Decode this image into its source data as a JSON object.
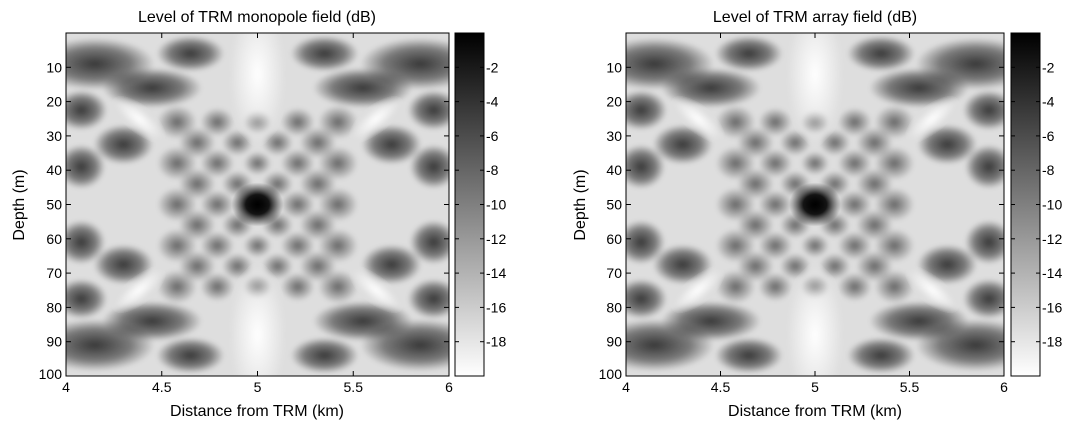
{
  "chart_data": [
    {
      "type": "heatmap",
      "title": "Level of TRM monopole field (dB)",
      "xlabel": "Distance from TRM (km)",
      "ylabel": "Depth (m)",
      "xlim": [
        4,
        6
      ],
      "ylim": [
        0,
        100
      ],
      "y_reversed": true,
      "x_ticks": [
        4,
        4.5,
        5,
        5.5,
        6
      ],
      "x_tick_labels": [
        "4",
        "4.5",
        "5",
        "5.5",
        "6"
      ],
      "y_ticks": [
        10,
        20,
        30,
        40,
        50,
        60,
        70,
        80,
        90,
        100
      ],
      "y_tick_labels": [
        "10",
        "20",
        "30",
        "40",
        "50",
        "60",
        "70",
        "80",
        "90",
        "100"
      ],
      "colormap": "gray, black = high level, white = low level",
      "colorbar": {
        "range": [
          -20,
          0
        ],
        "ticks": [
          -2,
          -4,
          -6,
          -8,
          -10,
          -12,
          -14,
          -16,
          -18
        ],
        "tick_labels": [
          "-2",
          "-4",
          "-6",
          "-8",
          "-10",
          "-12",
          "-14",
          "-16",
          "-18"
        ]
      },
      "focal_point": {
        "x": 5,
        "y": 50,
        "value": 0
      },
      "grid": false
    },
    {
      "type": "heatmap",
      "title": "Level of TRM array field (dB)",
      "xlabel": "Distance from TRM (km)",
      "ylabel": "Depth (m)",
      "xlim": [
        4,
        6
      ],
      "ylim": [
        0,
        100
      ],
      "y_reversed": true,
      "x_ticks": [
        4,
        4.5,
        5,
        5.5,
        6
      ],
      "x_tick_labels": [
        "4",
        "4.5",
        "5",
        "5.5",
        "6"
      ],
      "y_ticks": [
        10,
        20,
        30,
        40,
        50,
        60,
        70,
        80,
        90,
        100
      ],
      "y_tick_labels": [
        "10",
        "20",
        "30",
        "40",
        "50",
        "60",
        "70",
        "80",
        "90",
        "100"
      ],
      "colormap": "gray, black = high level, white = low level",
      "colorbar": {
        "range": [
          -20,
          0
        ],
        "ticks": [
          -2,
          -4,
          -6,
          -8,
          -10,
          -12,
          -14,
          -16,
          -18
        ],
        "tick_labels": [
          "-2",
          "-4",
          "-6",
          "-8",
          "-10",
          "-12",
          "-14",
          "-16",
          "-18"
        ]
      },
      "focal_point": {
        "x": 5,
        "y": 50,
        "value": 0
      },
      "grid": false
    }
  ]
}
